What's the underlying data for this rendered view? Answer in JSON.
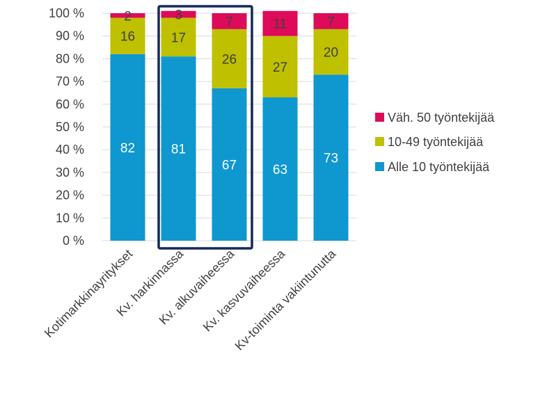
{
  "chart_data": {
    "type": "bar",
    "stacked": true,
    "percent_stacked": true,
    "categories": [
      "Kotimarkkinayritykset",
      "Kv. harkinnassa",
      "Kv. alkuvaiheessa",
      "Kv. kasvuvaiheessa",
      "Kv-toiminta vakiintunutta"
    ],
    "series": [
      {
        "name": "Alle 10 työntekijää",
        "values": [
          82,
          81,
          67,
          63,
          73
        ],
        "color": "#0f97d0",
        "label_color": "#ffffff"
      },
      {
        "name": "10-49 työntekijää",
        "values": [
          16,
          17,
          26,
          27,
          20
        ],
        "color": "#bec000",
        "label_color": "#404040"
      },
      {
        "name": "Väh. 50 työntekijää",
        "values": [
          2,
          3,
          7,
          11,
          7
        ],
        "color": "#de0a5a",
        "label_color": "#404040"
      }
    ],
    "y_ticks": [
      "0 %",
      "10 %",
      "20 %",
      "30 %",
      "40 %",
      "50 %",
      "60 %",
      "70 %",
      "80 %",
      "90 %",
      "100 %"
    ],
    "ylim": [
      0,
      100
    ],
    "grid": true,
    "legend": {
      "position": "right",
      "order": [
        "Väh. 50 työntekijää",
        "10-49 työntekijää",
        "Alle 10 työntekijää"
      ]
    },
    "highlight": {
      "categories": [
        "Kv. harkinnassa",
        "Kv. alkuvaiheessa"
      ],
      "color": "#14285a"
    }
  }
}
